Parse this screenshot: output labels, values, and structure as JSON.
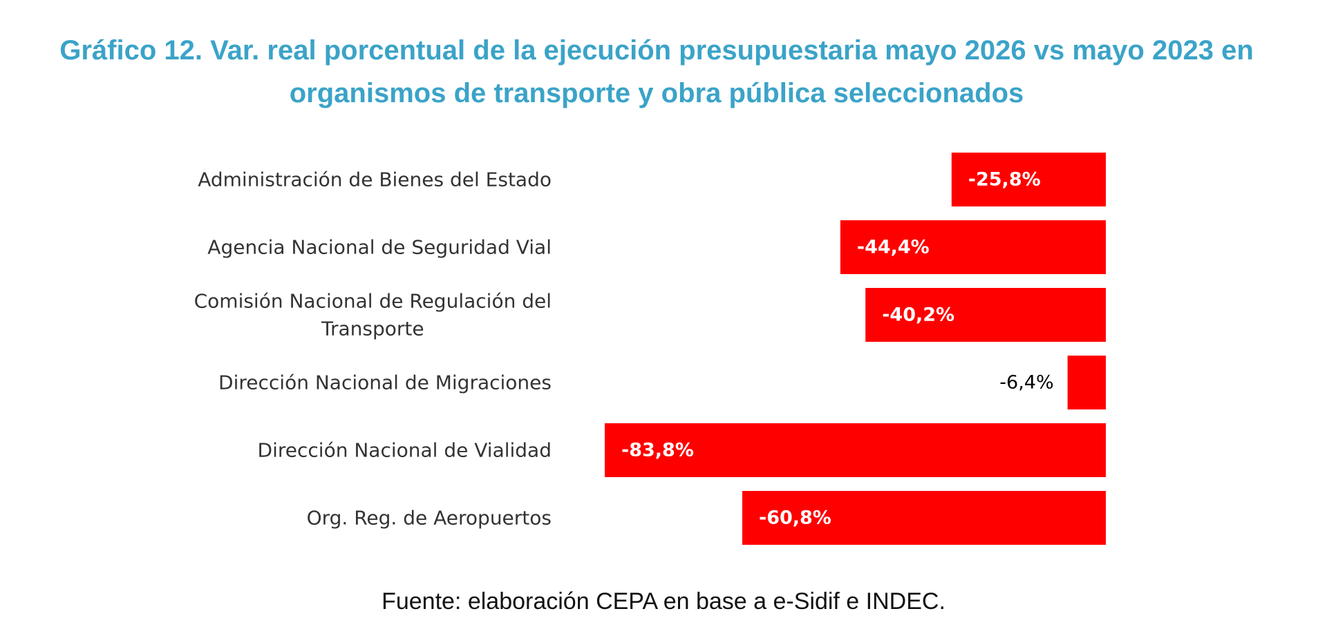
{
  "chart_data": {
    "type": "bar",
    "orientation": "horizontal",
    "title": "Gráfico 12. Var. real porcentual de la ejecución presupuestaria mayo 2026 vs mayo 2023 en organismos de transporte y obra pública seleccionados",
    "categories": [
      "Administración de Bienes del Estado",
      "Agencia Nacional de Seguridad Vial",
      "Comisión Nacional de Regulación del Transporte",
      "Dirección Nacional de Migraciones",
      "Dirección Nacional de Vialidad",
      "Org. Reg. de Aeropuertos"
    ],
    "values": [
      -25.8,
      -44.4,
      -40.2,
      -6.4,
      -83.8,
      -60.8
    ],
    "data_labels": [
      "-25,8%",
      "-44,4%",
      "-40,2%",
      "-6,4%",
      "-83,8%",
      "-60,8%"
    ],
    "xlim": [
      -83.8,
      0
    ],
    "bar_color": "#ff0000",
    "title_color": "#3ba3c8",
    "grid": false,
    "legend": "none"
  },
  "source": "Fuente: elaboración CEPA en base a e-Sidif e INDEC."
}
